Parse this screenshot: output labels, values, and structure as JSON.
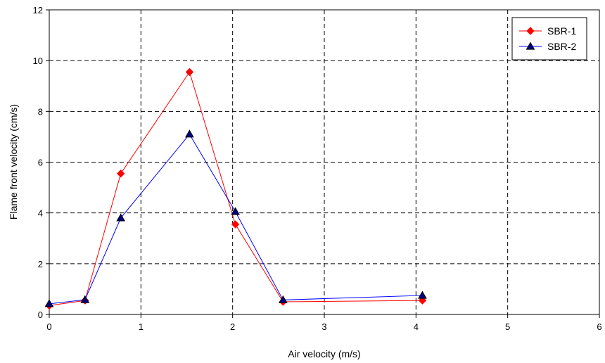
{
  "chart_data": {
    "type": "line",
    "xlabel": "Air velocity (m/s)",
    "ylabel": "Flame front velocity (cm/s)",
    "xlim": [
      0,
      6
    ],
    "ylim": [
      0,
      12
    ],
    "x_ticks": [
      "0",
      "1",
      "2",
      "3",
      "4",
      "5",
      "6"
    ],
    "y_ticks": [
      "0",
      "2",
      "4",
      "6",
      "8",
      "10",
      "12"
    ],
    "grid": true,
    "grid_style": "dashed",
    "legend_position": "top-right",
    "series": [
      {
        "name": "SBR-1",
        "color": "#ff0000",
        "marker": "diamond",
        "x": [
          0,
          0.39,
          0.78,
          1.53,
          2.03,
          2.55,
          4.07
        ],
        "y": [
          0.35,
          0.55,
          5.55,
          9.55,
          3.55,
          0.5,
          0.55
        ]
      },
      {
        "name": "SBR-2",
        "color": "#0000ff",
        "marker": "triangle",
        "x": [
          0,
          0.39,
          0.78,
          1.53,
          2.03,
          2.55,
          4.07
        ],
        "y": [
          0.42,
          0.58,
          3.8,
          7.1,
          4.05,
          0.57,
          0.75
        ]
      }
    ]
  }
}
